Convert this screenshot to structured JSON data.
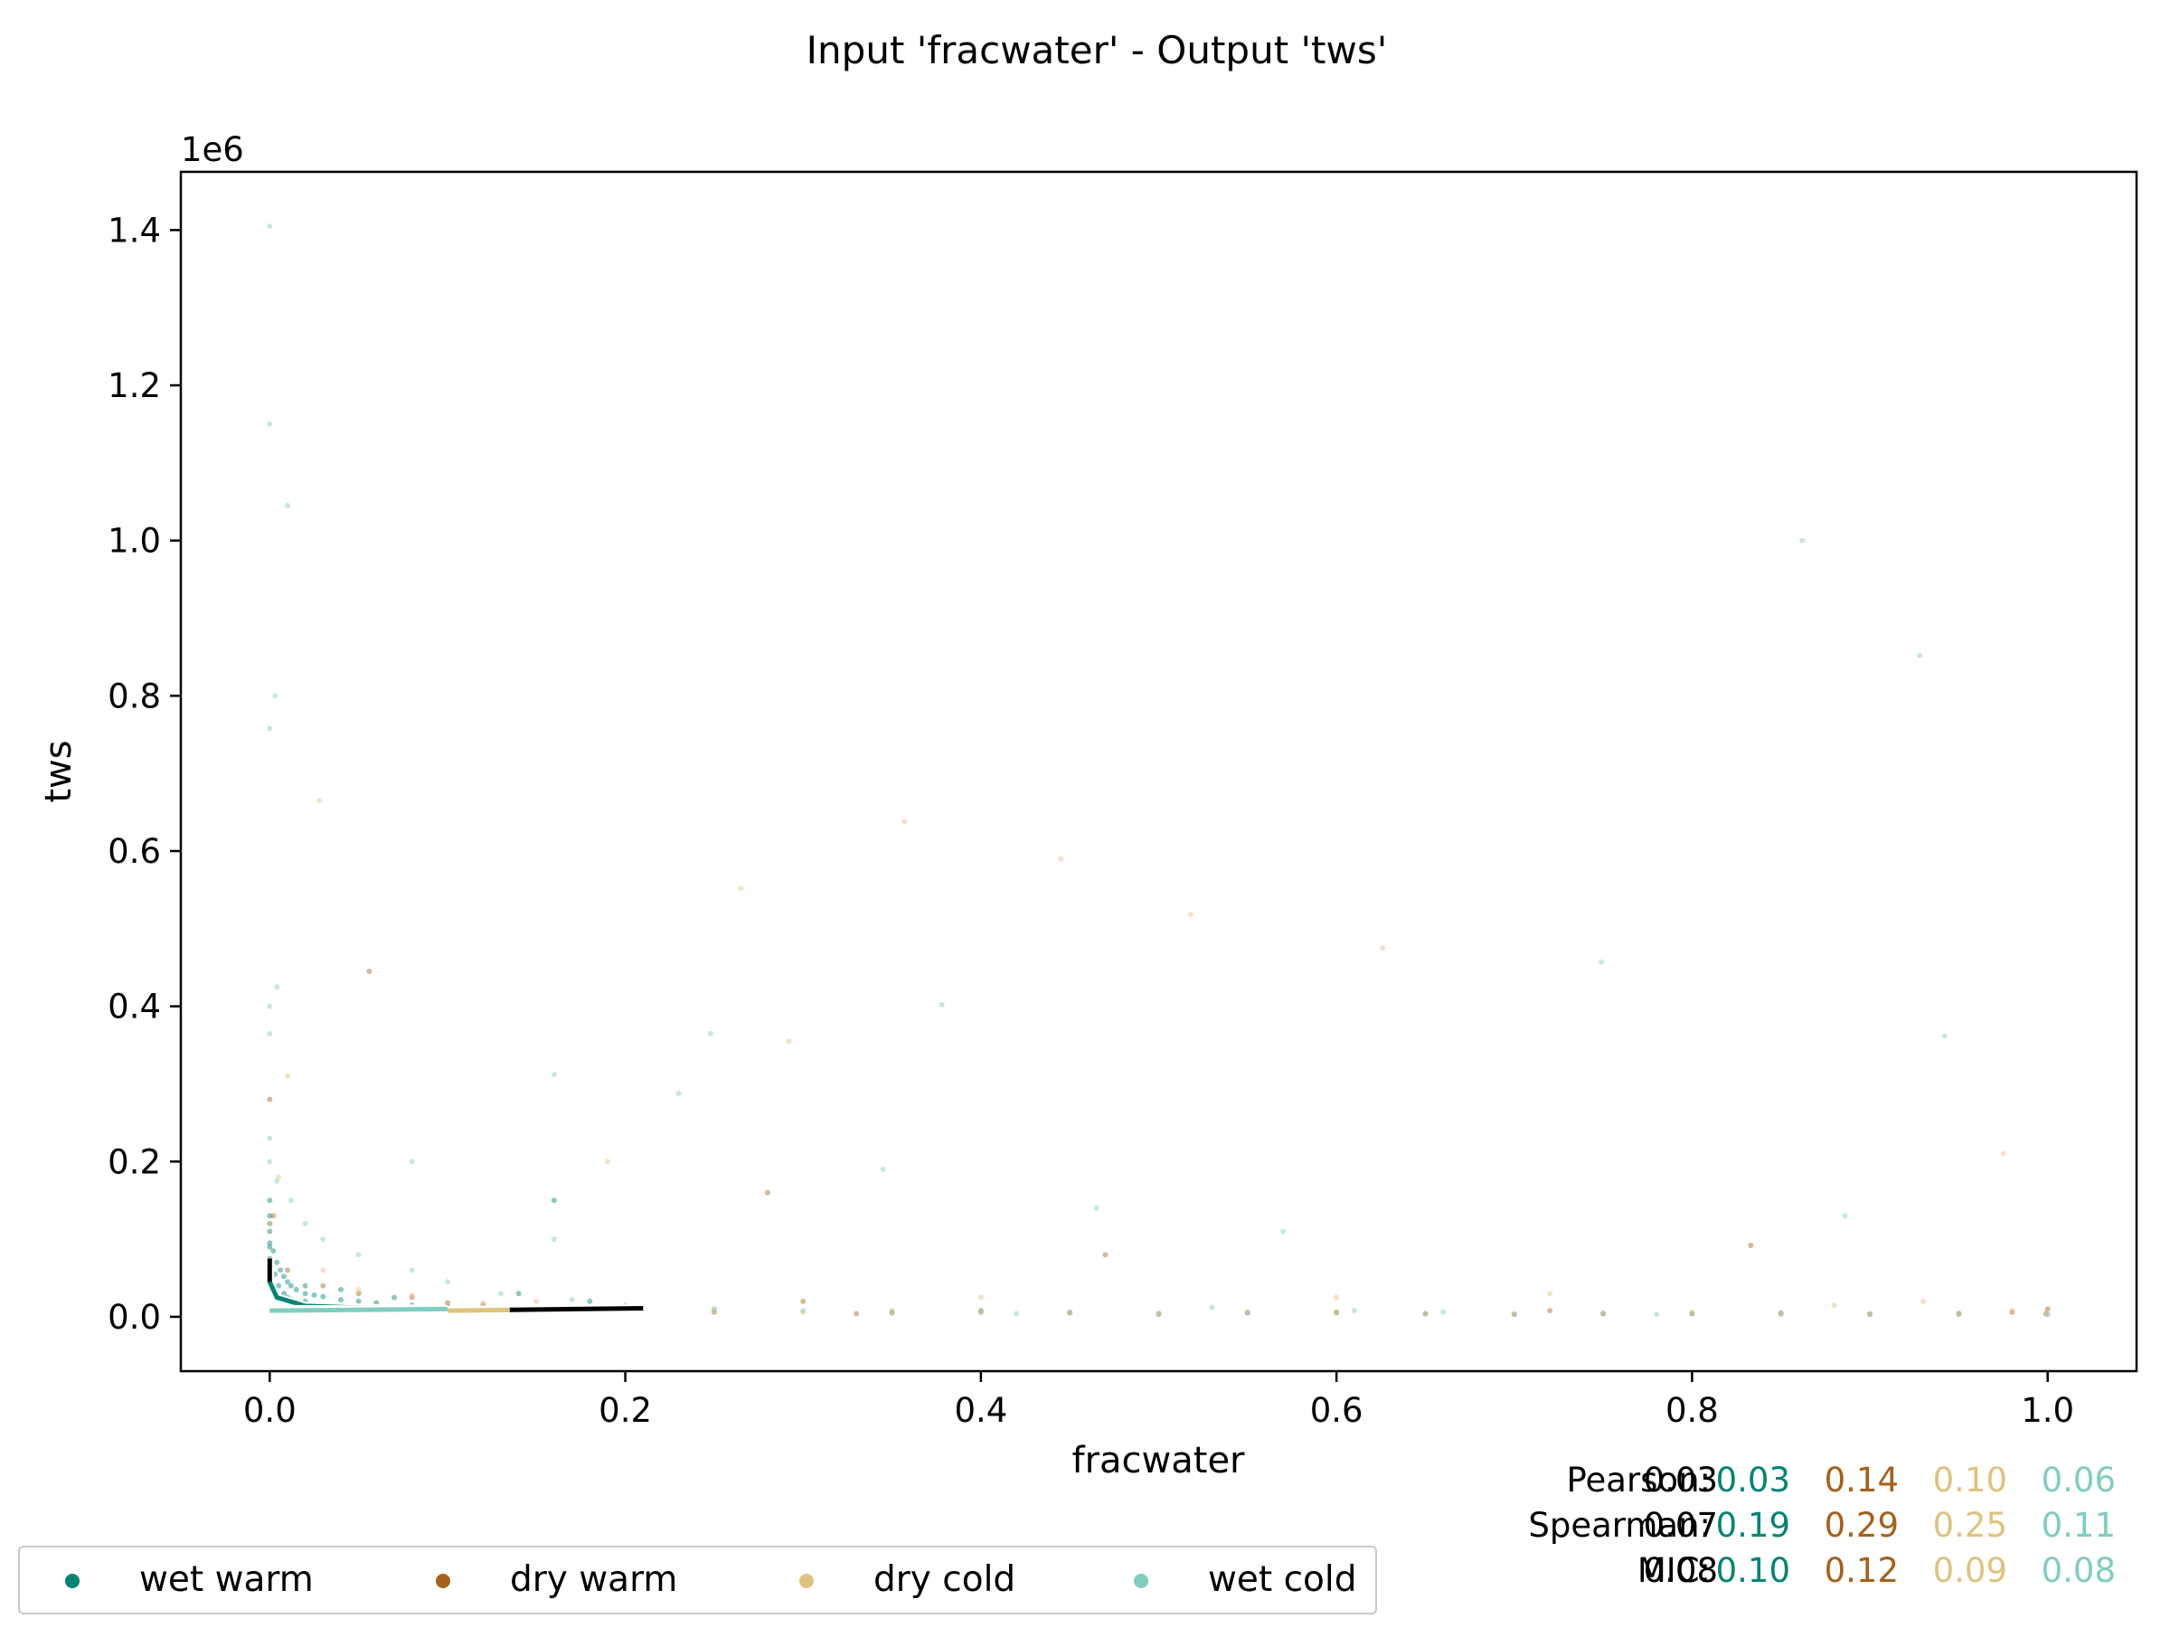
{
  "chart_data": {
    "type": "scatter",
    "title": "Input 'fracwater' - Output 'tws'",
    "xlabel": "fracwater",
    "ylabel": "tws",
    "y_offset_text": "1e6",
    "xlim": [
      -0.05,
      1.05
    ],
    "ylim": [
      -70000,
      1475000
    ],
    "x_ticks": [
      0.0,
      0.2,
      0.4,
      0.6,
      0.8,
      1.0
    ],
    "x_tick_labels": [
      "0.0",
      "0.2",
      "0.4",
      "0.6",
      "0.8",
      "1.0"
    ],
    "y_ticks": [
      0,
      200000,
      400000,
      600000,
      800000,
      1000000,
      1200000,
      1400000
    ],
    "y_tick_labels": [
      "0.0",
      "0.2",
      "0.4",
      "0.6",
      "0.8",
      "1.0",
      "1.2",
      "1.4"
    ],
    "grid": false,
    "legend_position": "bottom-left, below plot",
    "series": [
      {
        "name": "wet warm",
        "color": "#018571",
        "points": [
          [
            0.0,
            150000
          ],
          [
            0.0,
            130000
          ],
          [
            0.0,
            110000
          ],
          [
            0.0,
            95000
          ],
          [
            0.002,
            85000
          ],
          [
            0.004,
            70000
          ],
          [
            0.006,
            60000
          ],
          [
            0.008,
            52000
          ],
          [
            0.01,
            45000
          ],
          [
            0.012,
            40000
          ],
          [
            0.015,
            35000
          ],
          [
            0.02,
            30000
          ],
          [
            0.025,
            28000
          ],
          [
            0.03,
            26000
          ],
          [
            0.04,
            22000
          ],
          [
            0.05,
            20000
          ],
          [
            0.06,
            18000
          ],
          [
            0.08,
            15000
          ],
          [
            0.1,
            13000
          ],
          [
            0.12,
            12000
          ],
          [
            0.15,
            10000
          ],
          [
            0.005,
            40000
          ],
          [
            0.008,
            30000
          ],
          [
            0.01,
            25000
          ],
          [
            0.02,
            20000
          ],
          [
            0.001,
            65000
          ],
          [
            0.003,
            55000
          ],
          [
            0.0,
            75000
          ],
          [
            0.0,
            120000
          ],
          [
            0.03,
            15000
          ],
          [
            0.06,
            11000
          ],
          [
            0.09,
            9000
          ],
          [
            0.14,
            30000
          ],
          [
            0.02,
            40000
          ],
          [
            0.04,
            35000
          ],
          [
            0.07,
            25000
          ],
          [
            0.16,
            150000
          ],
          [
            0.18,
            20000
          ],
          [
            0.0,
            90000
          ],
          [
            0.012,
            22000
          ]
        ],
        "trend": [
          [
            0.0,
            70000
          ],
          [
            0.0,
            45000
          ],
          [
            0.004,
            25000
          ],
          [
            0.02,
            14000
          ],
          [
            0.06,
            11000
          ],
          [
            0.1,
            10000
          ]
        ]
      },
      {
        "name": "dry warm",
        "color": "#a6611a",
        "points": [
          [
            0.0,
            280000
          ],
          [
            0.002,
            130000
          ],
          [
            0.01,
            60000
          ],
          [
            0.03,
            40000
          ],
          [
            0.05,
            30000
          ],
          [
            0.08,
            25000
          ],
          [
            0.12,
            15000
          ],
          [
            0.18,
            8000
          ],
          [
            0.25,
            6000
          ],
          [
            0.35,
            5000
          ],
          [
            0.45,
            5000
          ],
          [
            0.55,
            5000
          ],
          [
            0.65,
            4000
          ],
          [
            0.75,
            4000
          ],
          [
            0.85,
            5000
          ],
          [
            0.95,
            4000
          ],
          [
            0.4,
            8000
          ],
          [
            0.5,
            3000
          ],
          [
            0.6,
            6000
          ],
          [
            0.7,
            3000
          ],
          [
            0.8,
            4000
          ],
          [
            0.9,
            3000
          ],
          [
            0.98,
            6000
          ],
          [
            0.833,
            92000
          ],
          [
            0.47,
            80000
          ],
          [
            0.056,
            445000
          ],
          [
            0.28,
            160000
          ],
          [
            0.3,
            20000
          ],
          [
            0.2,
            10000
          ],
          [
            0.1,
            18000
          ],
          [
            1.0,
            10000
          ],
          [
            0.999,
            4000
          ],
          [
            0.72,
            8000
          ],
          [
            0.33,
            4000
          ]
        ],
        "trend": [
          [
            0.0,
            10000
          ],
          [
            0.1,
            9000
          ],
          [
            0.2,
            10000
          ]
        ]
      },
      {
        "name": "dry cold",
        "color": "#dfc27d",
        "points": [
          [
            0.028,
            665000
          ],
          [
            0.357,
            638000
          ],
          [
            0.445,
            590000
          ],
          [
            0.265,
            552000
          ],
          [
            0.518,
            518000
          ],
          [
            0.626,
            475000
          ],
          [
            0.292,
            355000
          ],
          [
            0.01,
            310000
          ],
          [
            0.975,
            210000
          ],
          [
            0.98,
            8000
          ],
          [
            0.2,
            12000
          ],
          [
            0.3,
            6000
          ],
          [
            0.4,
            5000
          ],
          [
            0.5,
            4000
          ],
          [
            0.6,
            5000
          ],
          [
            0.7,
            3000
          ],
          [
            0.8,
            6000
          ],
          [
            0.9,
            4000
          ],
          [
            1.0,
            3000
          ],
          [
            0.15,
            20000
          ],
          [
            0.25,
            10000
          ],
          [
            0.35,
            8000
          ],
          [
            0.45,
            6000
          ],
          [
            0.55,
            7000
          ],
          [
            0.65,
            4000
          ],
          [
            0.75,
            5000
          ],
          [
            0.85,
            3000
          ],
          [
            0.95,
            5000
          ],
          [
            0.05,
            35000
          ],
          [
            0.08,
            28000
          ],
          [
            0.12,
            18000
          ],
          [
            0.03,
            60000
          ],
          [
            0.4,
            25000
          ],
          [
            0.88,
            15000
          ],
          [
            0.72,
            30000
          ],
          [
            0.6,
            25000
          ],
          [
            0.93,
            20000
          ],
          [
            0.0,
            120000
          ],
          [
            0.19,
            200000
          ],
          [
            0.005,
            180000
          ]
        ],
        "trend": [
          [
            0.1,
            8000
          ],
          [
            0.14,
            9000
          ]
        ]
      },
      {
        "name": "wet cold",
        "color": "#80cdc1",
        "points": [
          [
            0.0,
            1405000
          ],
          [
            0.0,
            1150000
          ],
          [
            0.01,
            1045000
          ],
          [
            0.862,
            1000000
          ],
          [
            0.928,
            852000
          ],
          [
            0.003,
            800000
          ],
          [
            0.0,
            758000
          ],
          [
            0.749,
            457000
          ],
          [
            0.004,
            425000
          ],
          [
            0.0,
            400000
          ],
          [
            0.0,
            365000
          ],
          [
            0.248,
            365000
          ],
          [
            0.378,
            402000
          ],
          [
            0.23,
            288000
          ],
          [
            0.16,
            312000
          ],
          [
            0.942,
            362000
          ],
          [
            0.0,
            230000
          ],
          [
            0.0,
            200000
          ],
          [
            0.004,
            175000
          ],
          [
            0.012,
            150000
          ],
          [
            0.02,
            120000
          ],
          [
            0.03,
            100000
          ],
          [
            0.05,
            80000
          ],
          [
            0.08,
            60000
          ],
          [
            0.1,
            45000
          ],
          [
            0.13,
            30000
          ],
          [
            0.17,
            22000
          ],
          [
            0.2,
            15000
          ],
          [
            0.25,
            10000
          ],
          [
            0.3,
            8000
          ],
          [
            0.35,
            7000
          ],
          [
            0.4,
            6000
          ],
          [
            0.45,
            6000
          ],
          [
            0.5,
            5000
          ],
          [
            0.55,
            5000
          ],
          [
            0.6,
            5000
          ],
          [
            0.65,
            4000
          ],
          [
            0.7,
            4000
          ],
          [
            0.75,
            4000
          ],
          [
            0.8,
            4000
          ],
          [
            0.85,
            4000
          ],
          [
            0.9,
            4000
          ],
          [
            0.95,
            3000
          ],
          [
            1.0,
            3000
          ],
          [
            0.345,
            190000
          ],
          [
            0.57,
            110000
          ],
          [
            0.465,
            140000
          ],
          [
            0.886,
            130000
          ],
          [
            0.61,
            8000
          ],
          [
            0.53,
            12000
          ],
          [
            0.08,
            200000
          ],
          [
            0.16,
            100000
          ],
          [
            0.42,
            4000
          ],
          [
            0.66,
            6000
          ],
          [
            0.78,
            3000
          ]
        ],
        "trend": [
          [
            0.0,
            8000
          ],
          [
            0.05,
            9000
          ],
          [
            0.1,
            10000
          ]
        ]
      }
    ],
    "stats": {
      "rows": [
        {
          "label": "Pearson:",
          "values": [
            "0.03",
            "0.03",
            "0.14",
            "0.10",
            "0.06"
          ]
        },
        {
          "label": "Spearman:",
          "values": [
            "0.07",
            "0.19",
            "0.29",
            "0.25",
            "0.11"
          ]
        },
        {
          "label": "MIC:",
          "values": [
            "0.08",
            "0.10",
            "0.12",
            "0.09",
            "0.08"
          ]
        }
      ],
      "colors": [
        "#000000",
        "#018571",
        "#a6611a",
        "#dfc27d",
        "#80cdc1"
      ]
    }
  }
}
